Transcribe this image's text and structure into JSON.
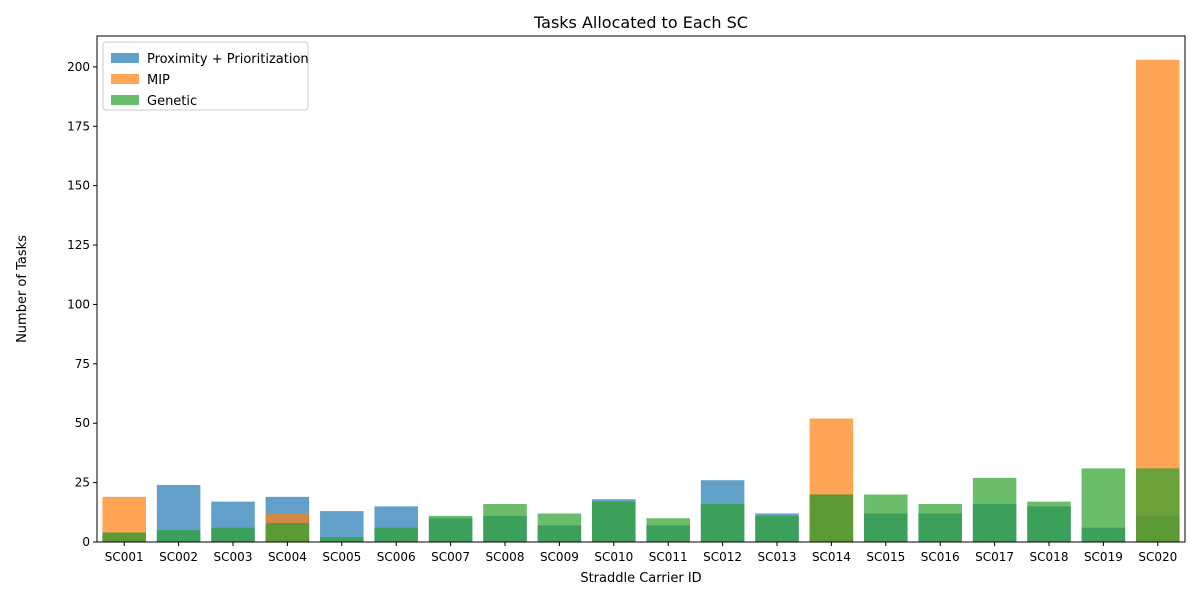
{
  "chart_data": {
    "type": "bar",
    "title": "Tasks Allocated to Each SC",
    "xlabel": "Straddle Carrier ID",
    "ylabel": "Number of Tasks",
    "ylim": [
      0,
      213
    ],
    "yticks": [
      0,
      25,
      50,
      75,
      100,
      125,
      150,
      175,
      200
    ],
    "legend_position": "top-left",
    "grid": false,
    "bar_opacity": 0.7,
    "categories": [
      "SC001",
      "SC002",
      "SC003",
      "SC004",
      "SC005",
      "SC006",
      "SC007",
      "SC008",
      "SC009",
      "SC010",
      "SC011",
      "SC012",
      "SC013",
      "SC014",
      "SC015",
      "SC016",
      "SC017",
      "SC018",
      "SC019",
      "SC020"
    ],
    "series": [
      {
        "name": "Proximity + Prioritization",
        "color": "#1f77b4",
        "values": [
          4,
          24,
          17,
          19,
          13,
          15,
          10,
          11,
          7,
          18,
          7,
          26,
          12,
          20,
          12,
          12,
          16,
          15,
          6,
          11
        ]
      },
      {
        "name": "MIP",
        "color": "#ff7f0e",
        "values": [
          19,
          0,
          0,
          12,
          0,
          0,
          0,
          0,
          0,
          0,
          0,
          0,
          0,
          52,
          0,
          0,
          0,
          0,
          0,
          203
        ]
      },
      {
        "name": "Genetic",
        "color": "#2ca02c",
        "values": [
          4,
          5,
          6,
          8,
          2,
          6,
          11,
          16,
          12,
          17,
          10,
          16,
          11,
          20,
          20,
          16,
          27,
          17,
          31,
          31
        ]
      }
    ]
  }
}
